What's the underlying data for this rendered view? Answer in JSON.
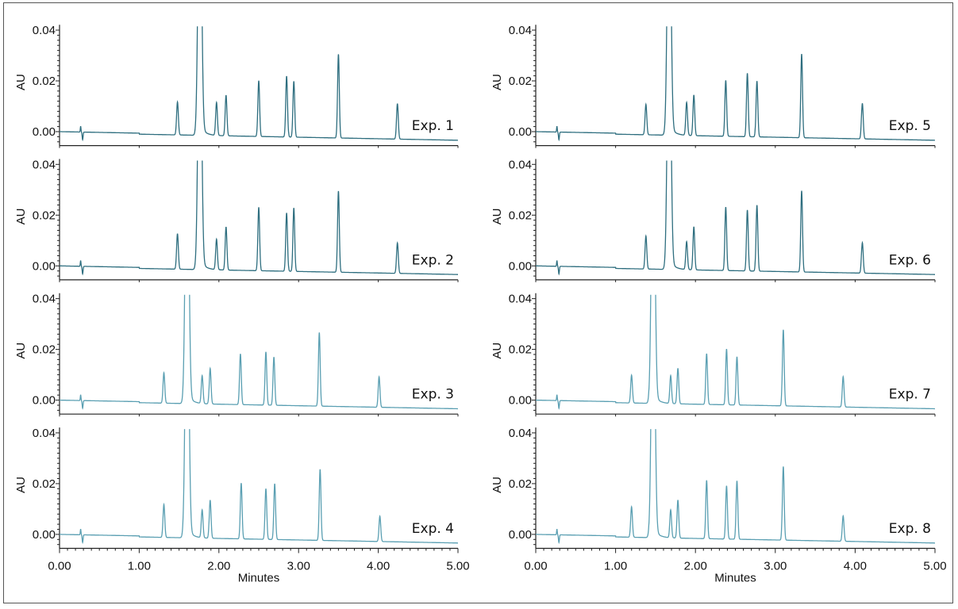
{
  "chart_data": [
    {
      "type": "line",
      "label": "Exp. 1",
      "column": "left",
      "color": "#2e6e7f",
      "xlabel": "",
      "ylabel": "AU",
      "xlim": [
        0,
        5
      ],
      "ylim": [
        -0.005,
        0.04
      ],
      "peaks": [
        {
          "x": 1.48,
          "y": 0.013
        },
        {
          "x": 1.76,
          "y": ">0.04"
        },
        {
          "x": 1.97,
          "y": 0.013
        },
        {
          "x": 2.09,
          "y": 0.016
        },
        {
          "x": 2.5,
          "y": 0.022
        },
        {
          "x": 2.85,
          "y": 0.024
        },
        {
          "x": 2.94,
          "y": 0.022
        },
        {
          "x": 3.5,
          "y": 0.033
        },
        {
          "x": 4.24,
          "y": 0.014
        }
      ]
    },
    {
      "type": "line",
      "label": "Exp. 2",
      "column": "left",
      "color": "#2e6e7f",
      "xlabel": "",
      "ylabel": "AU",
      "xlim": [
        0,
        5
      ],
      "ylim": [
        -0.005,
        0.04
      ],
      "peaks": [
        {
          "x": 1.48,
          "y": 0.014
        },
        {
          "x": 1.76,
          "y": ">0.04"
        },
        {
          "x": 1.97,
          "y": 0.012
        },
        {
          "x": 2.09,
          "y": 0.017
        },
        {
          "x": 2.5,
          "y": 0.025
        },
        {
          "x": 2.85,
          "y": 0.023
        },
        {
          "x": 2.94,
          "y": 0.025
        },
        {
          "x": 3.5,
          "y": 0.032
        },
        {
          "x": 4.24,
          "y": 0.012
        }
      ]
    },
    {
      "type": "line",
      "label": "Exp. 3",
      "column": "left",
      "color": "#5a9fb2",
      "xlabel": "",
      "ylabel": "AU",
      "xlim": [
        0,
        5
      ],
      "ylim": [
        -0.005,
        0.04
      ],
      "peaks": [
        {
          "x": 1.31,
          "y": 0.012
        },
        {
          "x": 1.6,
          "y": ">0.04"
        },
        {
          "x": 1.79,
          "y": 0.011
        },
        {
          "x": 1.89,
          "y": 0.014
        },
        {
          "x": 2.27,
          "y": 0.02
        },
        {
          "x": 2.59,
          "y": 0.021
        },
        {
          "x": 2.69,
          "y": 0.019
        },
        {
          "x": 3.26,
          "y": 0.029
        },
        {
          "x": 4.01,
          "y": 0.012
        }
      ]
    },
    {
      "type": "line",
      "label": "Exp. 4",
      "column": "left",
      "color": "#5a9fb2",
      "xlabel": "Minutes",
      "ylabel": "AU",
      "xlim": [
        0,
        5
      ],
      "ylim": [
        -0.005,
        0.04
      ],
      "peaks": [
        {
          "x": 1.31,
          "y": 0.013
        },
        {
          "x": 1.6,
          "y": ">0.04"
        },
        {
          "x": 1.79,
          "y": 0.011
        },
        {
          "x": 1.89,
          "y": 0.015
        },
        {
          "x": 2.28,
          "y": 0.022
        },
        {
          "x": 2.59,
          "y": 0.02
        },
        {
          "x": 2.7,
          "y": 0.022
        },
        {
          "x": 3.27,
          "y": 0.028
        },
        {
          "x": 4.02,
          "y": 0.01
        }
      ]
    },
    {
      "type": "line",
      "label": "Exp. 5",
      "column": "right",
      "color": "#2e6e7f",
      "xlabel": "",
      "ylabel": "AU",
      "xlim": [
        0,
        5
      ],
      "ylim": [
        -0.005,
        0.04
      ],
      "peaks": [
        {
          "x": 1.38,
          "y": 0.012
        },
        {
          "x": 1.67,
          "y": ">0.04"
        },
        {
          "x": 1.89,
          "y": 0.013
        },
        {
          "x": 1.98,
          "y": 0.016
        },
        {
          "x": 2.38,
          "y": 0.022
        },
        {
          "x": 2.65,
          "y": 0.025
        },
        {
          "x": 2.77,
          "y": 0.022
        },
        {
          "x": 3.33,
          "y": 0.033
        },
        {
          "x": 4.09,
          "y": 0.014
        }
      ]
    },
    {
      "type": "line",
      "label": "Exp. 6",
      "column": "right",
      "color": "#2e6e7f",
      "xlabel": "",
      "ylabel": "AU",
      "xlim": [
        0,
        5
      ],
      "ylim": [
        -0.005,
        0.04
      ],
      "peaks": [
        {
          "x": 1.38,
          "y": 0.013
        },
        {
          "x": 1.67,
          "y": ">0.04"
        },
        {
          "x": 1.89,
          "y": 0.011
        },
        {
          "x": 1.98,
          "y": 0.017
        },
        {
          "x": 2.38,
          "y": 0.025
        },
        {
          "x": 2.65,
          "y": 0.024
        },
        {
          "x": 2.77,
          "y": 0.026
        },
        {
          "x": 3.33,
          "y": 0.032
        },
        {
          "x": 4.09,
          "y": 0.012
        }
      ]
    },
    {
      "type": "line",
      "label": "Exp. 7",
      "column": "right",
      "color": "#5a9fb2",
      "xlabel": "",
      "ylabel": "AU",
      "xlim": [
        0,
        5
      ],
      "ylim": [
        -0.005,
        0.04
      ],
      "peaks": [
        {
          "x": 1.2,
          "y": 0.011
        },
        {
          "x": 1.47,
          "y": ">0.04"
        },
        {
          "x": 1.69,
          "y": 0.011
        },
        {
          "x": 1.78,
          "y": 0.014
        },
        {
          "x": 2.14,
          "y": 0.02
        },
        {
          "x": 2.39,
          "y": 0.022
        },
        {
          "x": 2.52,
          "y": 0.019
        },
        {
          "x": 3.1,
          "y": 0.03
        },
        {
          "x": 3.85,
          "y": 0.012
        }
      ]
    },
    {
      "type": "line",
      "label": "Exp. 8",
      "column": "right",
      "color": "#5a9fb2",
      "xlabel": "Minutes",
      "ylabel": "AU",
      "xlim": [
        0,
        5
      ],
      "ylim": [
        -0.005,
        0.04
      ],
      "peaks": [
        {
          "x": 1.2,
          "y": 0.012
        },
        {
          "x": 1.47,
          "y": ">0.04"
        },
        {
          "x": 1.69,
          "y": 0.011
        },
        {
          "x": 1.78,
          "y": 0.015
        },
        {
          "x": 2.14,
          "y": 0.023
        },
        {
          "x": 2.39,
          "y": 0.021
        },
        {
          "x": 2.52,
          "y": 0.023
        },
        {
          "x": 3.1,
          "y": 0.029
        },
        {
          "x": 3.85,
          "y": 0.01
        }
      ]
    }
  ],
  "y_tick_labels": [
    "0.04",
    "0.02",
    "0.00"
  ],
  "x_tick_labels": [
    "0.00",
    "1.00",
    "2.00",
    "3.00",
    "4.00",
    "5.00"
  ],
  "grid": false
}
